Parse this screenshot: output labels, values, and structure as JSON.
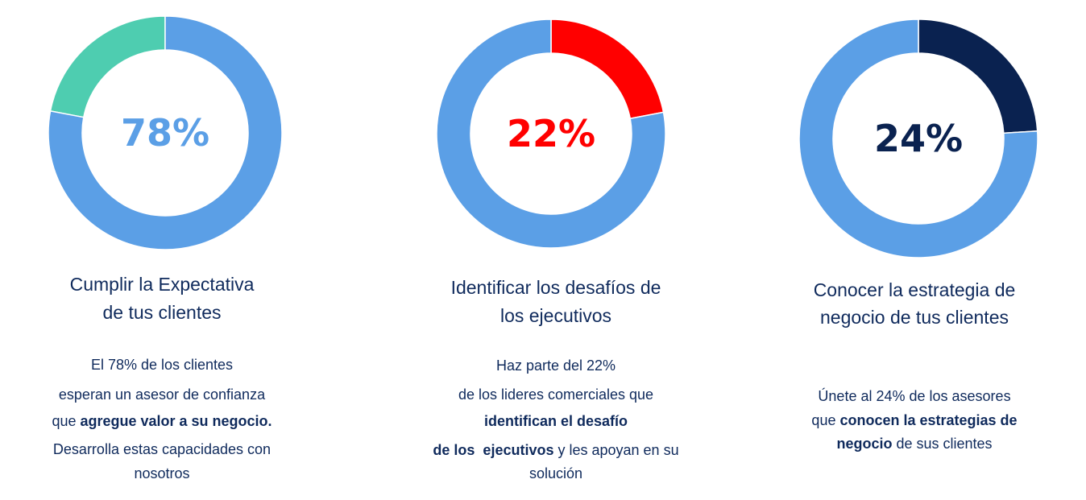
{
  "chart_data": [
    {
      "type": "pie",
      "variant": "donut",
      "center_label": "78%",
      "slices": [
        {
          "name": "highlight",
          "value": 22,
          "color": "#4ECDB0"
        },
        {
          "name": "rest",
          "value": 78,
          "color": "#5B9FE6"
        }
      ],
      "highlight_direction": "counterclockwise",
      "label_color": "#5B9FE6",
      "title_lines": [
        "Cumplir la Expectativa",
        "de tus clientes"
      ],
      "body_lines": [
        [
          {
            "text": "El 78% de los clientes",
            "bold": false
          }
        ],
        [
          {
            "text": "esperan un asesor de confianza",
            "bold": false
          }
        ],
        [
          {
            "text": "que ",
            "bold": false
          },
          {
            "text": "agregue valor a su negocio.",
            "bold": true
          }
        ],
        [
          {
            "text": "Desarrolla estas capacidades con",
            "bold": false
          }
        ],
        [
          {
            "text": "nosotros",
            "bold": false
          }
        ]
      ]
    },
    {
      "type": "pie",
      "variant": "donut",
      "center_label": "22%",
      "slices": [
        {
          "name": "highlight",
          "value": 22,
          "color": "#FF0000"
        },
        {
          "name": "rest",
          "value": 78,
          "color": "#5B9FE6"
        }
      ],
      "highlight_direction": "clockwise",
      "label_color": "#FF0000",
      "title_lines": [
        "Identificar los desafíos de",
        "los ejecutivos"
      ],
      "body_lines": [
        [
          {
            "text": "Haz parte del 22%",
            "bold": false
          }
        ],
        [
          {
            "text": "de los lideres comerciales que",
            "bold": false
          }
        ],
        [
          {
            "text": "identifican el desafío",
            "bold": true
          }
        ],
        [
          {
            "text": "de los  ejecutivos",
            "bold": true
          },
          {
            "text": " y les apoyan en su",
            "bold": false
          }
        ],
        [
          {
            "text": "solución",
            "bold": false
          }
        ]
      ]
    },
    {
      "type": "pie",
      "variant": "donut",
      "center_label": "24%",
      "slices": [
        {
          "name": "highlight",
          "value": 24,
          "color": "#0A2250"
        },
        {
          "name": "rest",
          "value": 76,
          "color": "#5B9FE6"
        }
      ],
      "highlight_direction": "clockwise",
      "label_color": "#0A2250",
      "title_lines": [
        "Conocer la estrategia de",
        "negocio de tus clientes"
      ],
      "body_lines": [
        [
          {
            "text": "Únete al 24% de los asesores",
            "bold": false
          }
        ],
        [
          {
            "text": "que ",
            "bold": false
          },
          {
            "text": "conocen la estrategias de",
            "bold": true
          }
        ],
        [
          {
            "text": "negocio",
            "bold": true
          },
          {
            "text": " de sus clientes",
            "bold": false
          }
        ]
      ]
    }
  ]
}
